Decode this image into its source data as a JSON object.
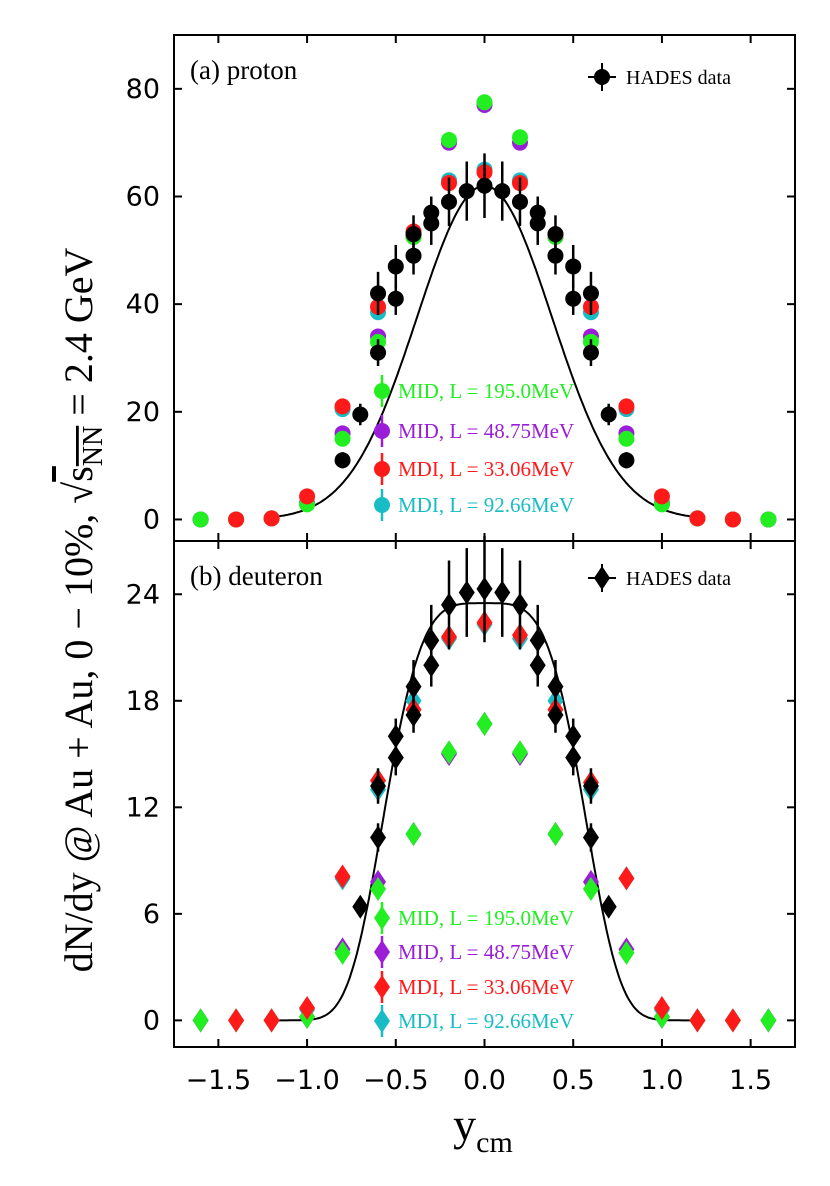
{
  "figure": {
    "ylabel": {
      "prefix": "dN/dy  @ Au + Au, 0 − 10%, ",
      "sqrt_sym": "√",
      "s": "s",
      "sub": "NN",
      "suffix": " = 2.4 GeV"
    },
    "xlabel": {
      "main": "y",
      "sub": "cm"
    },
    "x_ticks": [
      -1.5,
      -1.0,
      -0.5,
      0.0,
      0.5,
      1.0,
      1.5
    ],
    "x_tick_labels": [
      "−1.5",
      "−1.0",
      "−0.5",
      "0.0",
      "0.5",
      "1.0",
      "1.5"
    ],
    "x_range": [
      -1.75,
      1.75
    ],
    "colors": {
      "data": "#000000",
      "mid195": "#22ee22",
      "mid48": "#9a1ed8",
      "mdi33": "#ff1a1a",
      "mdi92": "#17bcc4"
    },
    "legend_names": {
      "mid195": "MID, L = 195.0MeV",
      "mid48": "MID, L = 48.75MeV",
      "mdi33": "MDI, L = 33.06MeV",
      "mdi92": "MDI, L = 92.66MeV"
    },
    "hades_label": "HADES data"
  },
  "chart_data": [
    {
      "type": "scatter",
      "panel": "a",
      "title": "(a) proton",
      "xlabel": "y_cm",
      "ylabel": "dN/dy",
      "ylim": [
        -4,
        90
      ],
      "y_ticks": [
        0,
        20,
        40,
        60,
        80
      ],
      "x_ticks": [
        -1.5,
        -1.0,
        -0.5,
        0.0,
        0.5,
        1.0,
        1.5
      ],
      "marker": "circle",
      "fit_curve": {
        "amplitude": 62,
        "sigma": 0.38,
        "exponent": 2
      },
      "hades": {
        "name": "HADES data",
        "x": [
          -0.8,
          -0.7,
          -0.6,
          -0.5,
          -0.4,
          -0.3,
          -0.2,
          -0.1,
          0.0,
          0.1,
          0.2,
          0.3,
          0.4,
          0.5,
          0.6,
          0.7,
          0.8
        ],
        "y": [
          11,
          19.5,
          31,
          41,
          49,
          55,
          59,
          61,
          62,
          61,
          59,
          55,
          49,
          41,
          31,
          19.5,
          11
        ],
        "err": [
          1.5,
          2.0,
          2.5,
          3.0,
          3.5,
          4.0,
          4.5,
          5.5,
          6.0,
          5.5,
          4.5,
          4.0,
          3.5,
          3.0,
          2.5,
          2.0,
          1.5
        ]
      },
      "hades_upper": {
        "x": [
          -0.6,
          -0.5,
          -0.4,
          -0.3,
          0.3,
          0.4,
          0.5,
          0.6
        ],
        "y": [
          42,
          47,
          53,
          57,
          57,
          53,
          47,
          42
        ],
        "err": [
          4.0,
          4.0,
          3.5,
          3.0,
          3.0,
          3.5,
          4.0,
          4.0
        ]
      },
      "series": [
        {
          "key": "mdi92",
          "name": "MDI, L = 92.66MeV",
          "x": [
            -1.6,
            -1.4,
            -1.2,
            -1.0,
            -0.8,
            -0.6,
            -0.4,
            -0.2,
            0.0,
            0.2,
            0.4,
            0.6,
            0.8,
            1.0,
            1.2,
            1.4,
            1.6
          ],
          "y": [
            0,
            0,
            0.2,
            3.0,
            20.5,
            38.5,
            53,
            63,
            65,
            63,
            53,
            38.5,
            20.5,
            3.0,
            0.2,
            0,
            0
          ]
        },
        {
          "key": "mid48",
          "name": "MID, L = 48.75MeV",
          "x": [
            -1.6,
            -1.4,
            -1.2,
            -1.0,
            -0.8,
            -0.6,
            -0.4,
            -0.2,
            0.0,
            0.2,
            0.4,
            0.6,
            0.8,
            1.0,
            1.2,
            1.4,
            1.6
          ],
          "y": [
            0,
            0,
            0.2,
            3.0,
            16,
            34,
            52.5,
            70,
            77,
            70,
            52.5,
            34,
            16,
            3.0,
            0.2,
            0,
            0
          ]
        },
        {
          "key": "mid195",
          "name": "MID, L = 195.0MeV",
          "x": [
            -1.6,
            -1.4,
            -1.2,
            -1.0,
            -0.8,
            -0.6,
            -0.4,
            -0.2,
            0.0,
            0.2,
            0.4,
            0.6,
            0.8,
            1.0,
            1.2,
            1.4,
            1.6
          ],
          "y": [
            0,
            0,
            0.2,
            2.8,
            15,
            33,
            52.5,
            70.5,
            77.5,
            71,
            52.5,
            33,
            15,
            2.8,
            0.2,
            0,
            0
          ]
        },
        {
          "key": "mdi33",
          "name": "MDI, L = 33.06MeV",
          "x": [
            -1.4,
            -1.2,
            -1.0,
            -0.8,
            -0.6,
            -0.4,
            -0.2,
            0.0,
            0.2,
            0.4,
            0.6,
            0.8,
            1.0,
            1.2,
            1.4
          ],
          "y": [
            0,
            0.2,
            4.3,
            21,
            39.5,
            53.5,
            62.5,
            64.5,
            62.5,
            53,
            39.5,
            21,
            4.3,
            0.2,
            0
          ]
        }
      ]
    },
    {
      "type": "scatter",
      "panel": "b",
      "title": "(b) deuteron",
      "xlabel": "y_cm",
      "ylabel": "dN/dy",
      "ylim": [
        -1.5,
        27
      ],
      "y_ticks": [
        0,
        6,
        12,
        18,
        24
      ],
      "x_ticks": [
        -1.5,
        -1.0,
        -0.5,
        0.0,
        0.5,
        1.0,
        1.5
      ],
      "marker": "diamond",
      "fit_curve": {
        "amplitude": 23.5,
        "sigma": 0.52,
        "exponent": 4
      },
      "hades": {
        "name": "HADES data",
        "x": [
          -0.7,
          -0.6,
          -0.5,
          -0.4,
          -0.3,
          -0.2,
          -0.1,
          0.0,
          0.1,
          0.2,
          0.3,
          0.4,
          0.5,
          0.6,
          0.7
        ],
        "y": [
          6.4,
          10.3,
          14.8,
          18.8,
          21.4,
          23.4,
          24.1,
          24.3,
          24.1,
          23.4,
          21.4,
          18.8,
          14.8,
          10.3,
          6.4
        ],
        "err": [
          0.5,
          0.8,
          1.0,
          1.5,
          2.0,
          2.5,
          2.5,
          3.0,
          2.5,
          2.5,
          2.0,
          1.5,
          1.0,
          0.8,
          0.5
        ]
      },
      "hades_upper": {
        "x": [
          -0.6,
          -0.5,
          -0.4,
          -0.3,
          0.3,
          0.4,
          0.5,
          0.6
        ],
        "y": [
          13.2,
          16,
          17.2,
          20,
          20,
          17.2,
          16,
          13.2
        ],
        "err": [
          1.0,
          1.0,
          1.0,
          1.2,
          1.2,
          1.0,
          1.0,
          1.0
        ]
      },
      "series": [
        {
          "key": "mdi92",
          "name": "MDI, L = 92.66MeV",
          "x": [
            -1.6,
            -1.4,
            -1.2,
            -1.0,
            -0.8,
            -0.6,
            -0.4,
            -0.2,
            0.0,
            0.2,
            0.4,
            0.6,
            0.8,
            1.0,
            1.2,
            1.4,
            1.6
          ],
          "y": [
            0,
            0,
            0,
            0.6,
            8.0,
            13.0,
            18.0,
            21.5,
            22.3,
            21.5,
            18.0,
            13.0,
            8.0,
            0.6,
            0,
            0,
            0
          ]
        },
        {
          "key": "mid48",
          "name": "MID, L = 48.75MeV",
          "x": [
            -1.6,
            -1.4,
            -1.2,
            -1.0,
            -0.8,
            -0.6,
            -0.4,
            -0.2,
            0.0,
            0.2,
            0.4,
            0.6,
            0.8,
            1.0,
            1.2,
            1.4,
            1.6
          ],
          "y": [
            0,
            0,
            0,
            0.2,
            4.0,
            7.8,
            10.5,
            15.0,
            16.7,
            15.0,
            10.5,
            7.8,
            4.0,
            0.2,
            0,
            0,
            0
          ]
        },
        {
          "key": "mid195",
          "name": "MID, L = 195.0MeV",
          "x": [
            -1.6,
            -1.4,
            -1.2,
            -1.0,
            -0.8,
            -0.6,
            -0.4,
            -0.2,
            0.0,
            0.2,
            0.4,
            0.6,
            0.8,
            1.0,
            1.2,
            1.4,
            1.6
          ],
          "y": [
            0,
            0,
            0,
            0.2,
            3.8,
            7.4,
            10.5,
            15.1,
            16.7,
            15.1,
            10.5,
            7.4,
            3.8,
            0.2,
            0,
            0,
            0
          ]
        },
        {
          "key": "mdi33",
          "name": "MDI, L = 33.06MeV",
          "x": [
            -1.4,
            -1.2,
            -1.0,
            -0.8,
            -0.6,
            -0.4,
            -0.2,
            0.0,
            0.2,
            0.4,
            0.6,
            0.8,
            1.0,
            1.2,
            1.4
          ],
          "y": [
            0,
            0,
            0.7,
            8.1,
            13.5,
            17.5,
            21.6,
            22.4,
            21.7,
            17.5,
            13.4,
            8.0,
            0.7,
            0,
            0
          ]
        }
      ]
    }
  ]
}
